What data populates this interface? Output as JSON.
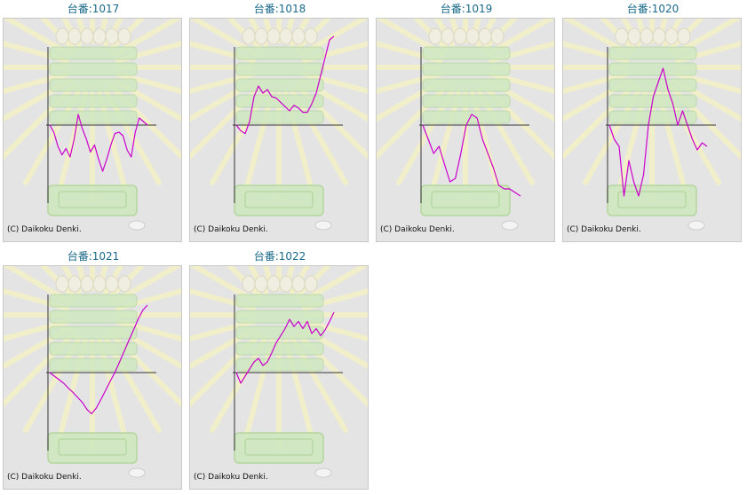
{
  "copyright": "(C) Daikoku Denki.",
  "colors": {
    "line": "#cc00cc",
    "axis": "#333333",
    "background": "#e4e4e4",
    "title": "#1a6a8a"
  },
  "chart_data": [
    {
      "type": "line",
      "title": "台番:1017",
      "xlabel": "",
      "ylabel": "",
      "y": [
        0,
        -10,
        -30,
        -42,
        -33,
        -45,
        -20,
        15,
        -5,
        -20,
        -38,
        -28,
        -48,
        -65,
        -48,
        -28,
        -12,
        -10,
        -15,
        -35,
        -45,
        -10,
        10,
        5,
        0
      ]
    },
    {
      "type": "line",
      "title": "台番:1018",
      "xlabel": "",
      "ylabel": "",
      "y": [
        0,
        -8,
        -12,
        5,
        40,
        55,
        45,
        50,
        40,
        38,
        32,
        26,
        20,
        28,
        24,
        18,
        18,
        30,
        45,
        70,
        95,
        120,
        125
      ]
    },
    {
      "type": "line",
      "title": "台番:1019",
      "xlabel": "",
      "ylabel": "",
      "y": [
        0,
        -20,
        -40,
        -30,
        -55,
        -80,
        -75,
        -40,
        0,
        15,
        10,
        -20,
        -40,
        -60,
        -85,
        -90,
        -90,
        -95,
        -100
      ]
    },
    {
      "type": "line",
      "title": "台番:1020",
      "xlabel": "",
      "ylabel": "",
      "y": [
        0,
        -20,
        -30,
        -100,
        -50,
        -80,
        -100,
        -70,
        0,
        40,
        60,
        80,
        50,
        30,
        0,
        20,
        0,
        -20,
        -35,
        -25,
        -30
      ]
    },
    {
      "type": "line",
      "title": "台番:1021",
      "xlabel": "",
      "ylabel": "",
      "y": [
        0,
        -5,
        -10,
        -15,
        -22,
        -28,
        -35,
        -42,
        -52,
        -58,
        -50,
        -38,
        -25,
        -12,
        0,
        15,
        30,
        45,
        60,
        75,
        88,
        95
      ]
    },
    {
      "type": "line",
      "title": "台番:1022",
      "xlabel": "",
      "ylabel": "",
      "y": [
        0,
        -15,
        -5,
        5,
        15,
        20,
        10,
        15,
        28,
        42,
        52,
        62,
        75,
        65,
        72,
        62,
        72,
        55,
        62,
        52,
        60,
        72,
        85
      ]
    }
  ]
}
